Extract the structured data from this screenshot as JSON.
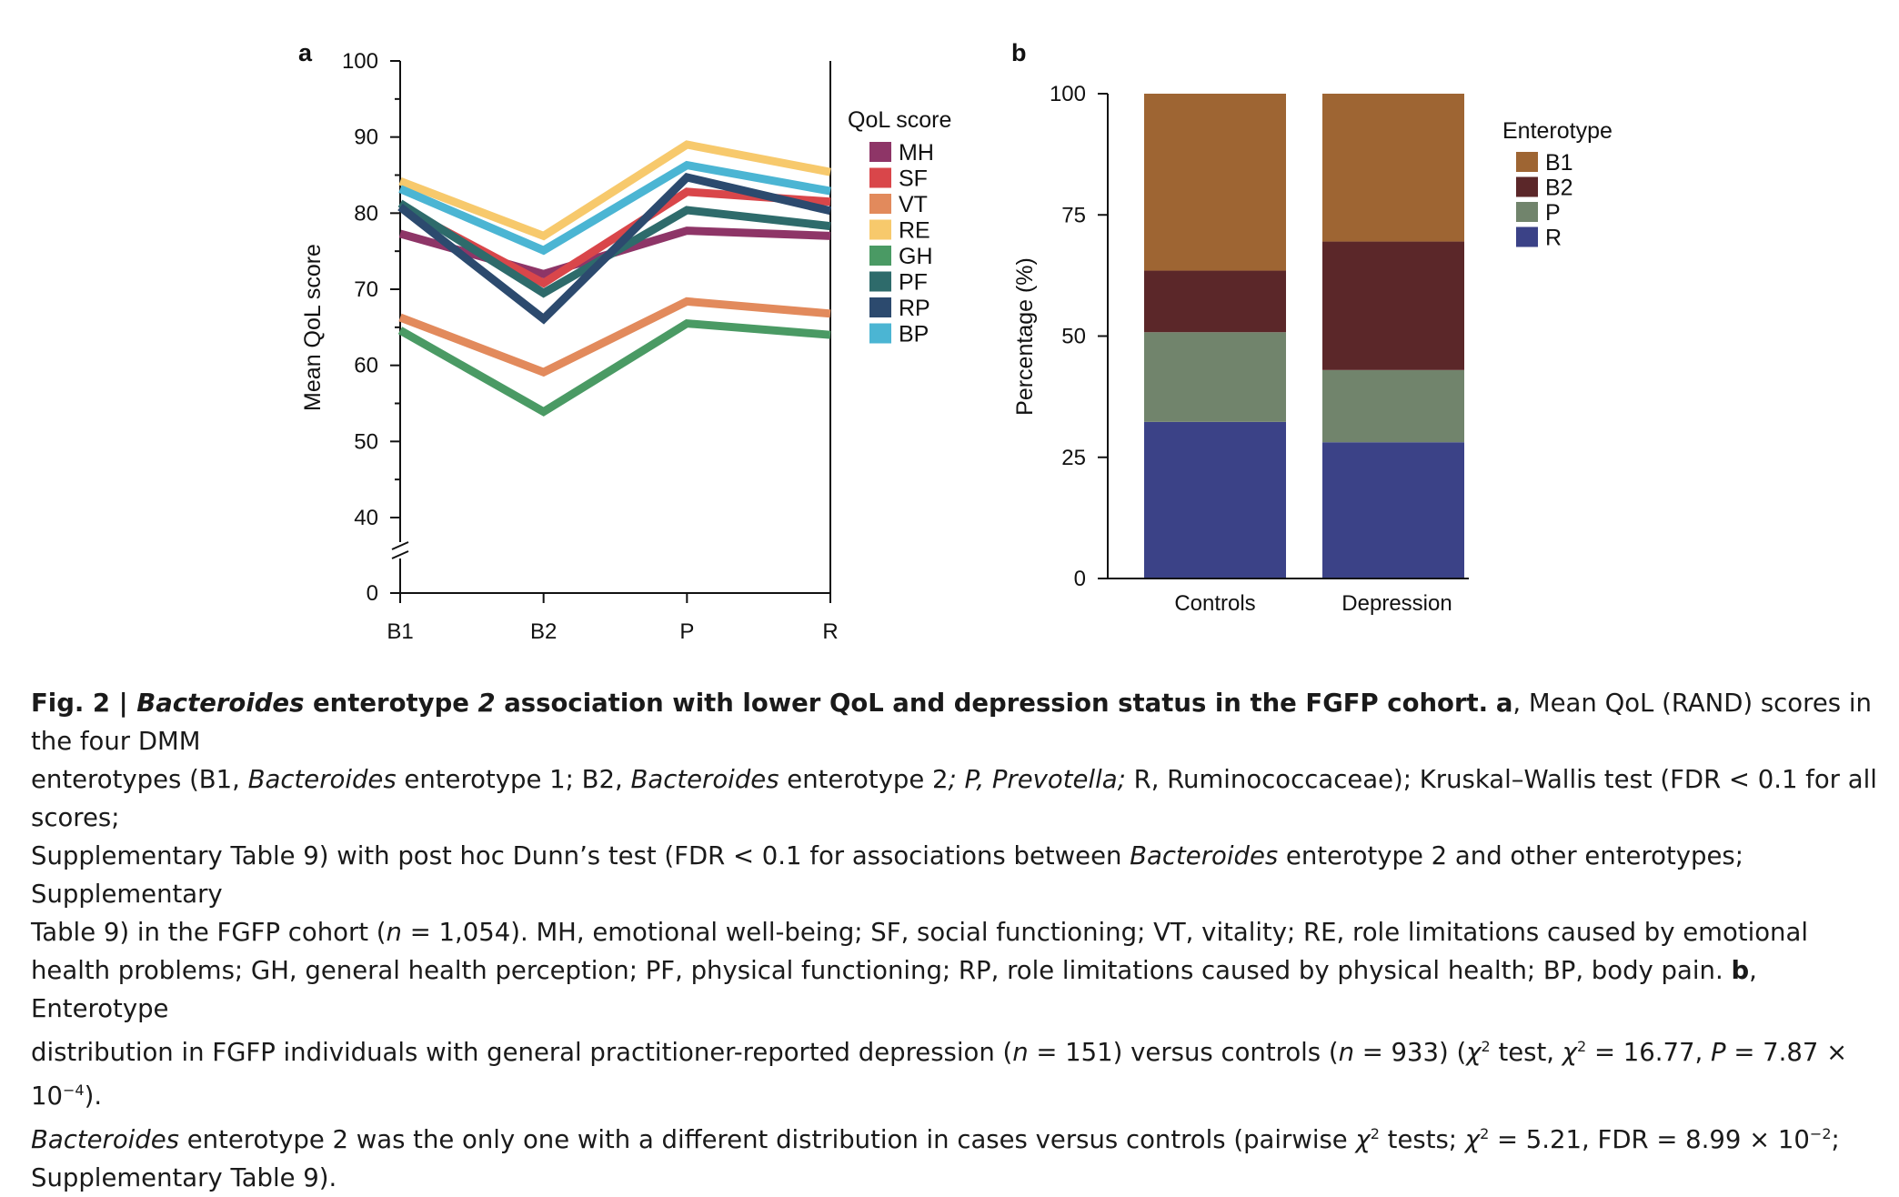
{
  "chart_data": [
    {
      "panel": "a",
      "type": "line",
      "categories": [
        "B1",
        "B2",
        "P",
        "R"
      ],
      "ylabel": "Mean QoL score",
      "yticks": [
        0,
        40,
        50,
        60,
        70,
        80,
        90,
        100
      ],
      "ylim": [
        0,
        100
      ],
      "axis_break": "between 0 and 40",
      "legend_title": "QoL score",
      "legend_position": "right",
      "series": [
        {
          "name": "MH",
          "color": "#8e3567",
          "values": [
            77.3,
            72.0,
            77.7,
            77.0
          ]
        },
        {
          "name": "SF",
          "color": "#d9464a",
          "values": [
            80.8,
            70.8,
            82.8,
            81.5
          ]
        },
        {
          "name": "VT",
          "color": "#e28a5c",
          "values": [
            66.3,
            59.1,
            68.4,
            66.8
          ]
        },
        {
          "name": "RE",
          "color": "#f7c96c",
          "values": [
            84.2,
            77.0,
            89.0,
            85.4
          ]
        },
        {
          "name": "GH",
          "color": "#4a9a64",
          "values": [
            64.6,
            53.9,
            65.5,
            64.0
          ]
        },
        {
          "name": "PF",
          "color": "#2e6b6b",
          "values": [
            81.3,
            69.5,
            80.4,
            78.3
          ]
        },
        {
          "name": "RP",
          "color": "#2c4a6e",
          "values": [
            80.8,
            66.1,
            84.7,
            80.3
          ]
        },
        {
          "name": "BP",
          "color": "#4bb5d3",
          "values": [
            83.2,
            75.1,
            86.3,
            82.9
          ]
        }
      ]
    },
    {
      "panel": "b",
      "type": "bar",
      "stacked": true,
      "categories": [
        "Controls",
        "Depression"
      ],
      "ylabel": "Percentage (%)",
      "yticks": [
        0,
        25,
        50,
        75,
        100
      ],
      "ylim": [
        0,
        100
      ],
      "legend_title": "Enterotype",
      "legend_position": "right",
      "series": [
        {
          "name": "R",
          "color": "#3b4287",
          "values": [
            32.3,
            28.1
          ]
        },
        {
          "name": "P",
          "color": "#71846c",
          "values": [
            18.5,
            14.9
          ]
        },
        {
          "name": "B2",
          "color": "#5b2729",
          "values": [
            12.7,
            26.5
          ]
        },
        {
          "name": "B1",
          "color": "#9e6533",
          "values": [
            36.5,
            30.5
          ]
        }
      ],
      "legend_order": [
        "B1",
        "B2",
        "P",
        "R"
      ]
    }
  ],
  "caption": {
    "lead": "Fig. 2 | ",
    "lead_italic_1": "Bacteroides",
    "lead_mid": " enterotype ",
    "lead_italic_2": "2",
    "lead_end": " association with lower QoL and depression status in the FGFP cohort.",
    "a_label": "a",
    "line1_text": ", Mean QoL (RAND) scores in the four DMM",
    "line2_a": "enterotypes (B1, ",
    "line2_b": "Bacteroides",
    "line2_c": " enterotype 1; B2, ",
    "line2_d": "Bacteroides",
    "line2_e": " enterotype 2",
    "line2_f": "; P, ",
    "line2_g": "Prevotella;",
    "line2_h": " R, Ruminococcaceae); Kruskal–Wallis test (FDR < 0.1 for all scores;",
    "line3_a": "Supplementary Table 9) with post hoc Dunn’s test (FDR < 0.1 for associations between ",
    "line3_b": "Bacteroides",
    "line3_c": " enterotype 2 and other enterotypes; Supplementary",
    "line4_a": "Table 9) in the FGFP cohort (",
    "line4_b": "n",
    "line4_c": " = 1,054). MH, emotional well-being; SF, social functioning; VT, vitality; RE, role limitations caused by emotional",
    "line5_a": "health problems; GH, general health perception; PF, physical functioning; RP, role limitations caused by physical health; BP, body pain. ",
    "b_label": "b",
    "line5_b": ", Enterotype",
    "line6_a": "distribution in FGFP individuals with general practitioner-reported depression (",
    "line6_b": "n",
    "line6_c": " = 151) versus controls (",
    "line6_d": "n",
    "line6_e": " = 933) (",
    "line6_f": "χ",
    "line6_g": "2",
    "line6_h": " test, ",
    "line6_i": "χ",
    "line6_j": "2",
    "line6_k": " = 16.77, ",
    "line6_l": "P",
    "line6_m": " = 7.87 × 10",
    "line6_n": "−4",
    "line6_o": ").",
    "line7_a": "Bacteroides",
    "line7_b": " enterotype 2 was the only one with a different distribution in cases versus controls (pairwise ",
    "line7_c": "χ",
    "line7_d": "2",
    "line7_e": " tests; ",
    "line7_f": "χ",
    "line7_g": "2",
    "line7_h": " = 5.21, FDR = 8.99 × 10",
    "line7_i": "−2",
    "line7_j": ";",
    "line8": "Supplementary Table 9)."
  }
}
